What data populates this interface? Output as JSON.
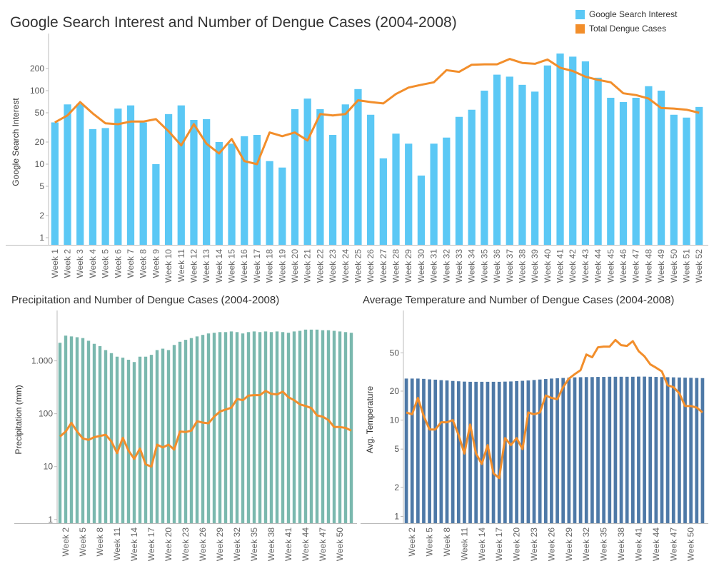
{
  "chart_data": [
    {
      "id": "top",
      "type": "bar",
      "title": "Google Search Interest and Number of Dengue Cases (2004-2008)",
      "ylabel": "Google Search Interest",
      "yscale": "log",
      "ylim": [
        0.8,
        500
      ],
      "yticks": [
        {
          "v": 1,
          "label": "1"
        },
        {
          "v": 2,
          "label": "2"
        },
        {
          "v": 5,
          "label": "5"
        },
        {
          "v": 10,
          "label": "10"
        },
        {
          "v": 20,
          "label": "20"
        },
        {
          "v": 50,
          "label": "50"
        },
        {
          "v": 100,
          "label": "100"
        },
        {
          "v": 200,
          "label": "200"
        }
      ],
      "categories": [
        "Week 1",
        "Week 2",
        "Week 3",
        "Week 4",
        "Week 5",
        "Week 6",
        "Week 7",
        "Week 8",
        "Week 9",
        "Week 10",
        "Week 11",
        "Week 12",
        "Week 13",
        "Week 14",
        "Week 15",
        "Week 16",
        "Week 17",
        "Week 18",
        "Week 19",
        "Week 20",
        "Week 21",
        "Week 22",
        "Week 23",
        "Week 24",
        "Week 25",
        "Week 26",
        "Week 27",
        "Week 28",
        "Week 29",
        "Week 30",
        "Week 31",
        "Week 32",
        "Week 33",
        "Week 34",
        "Week 35",
        "Week 36",
        "Week 37",
        "Week 38",
        "Week 39",
        "Week 40",
        "Week 41",
        "Week 42",
        "Week 43",
        "Week 44",
        "Week 45",
        "Week 46",
        "Week 47",
        "Week 48",
        "Week 49",
        "Week 50",
        "Week 51",
        "Week 52"
      ],
      "tick_labels": [
        "Week 1",
        "Week 2",
        "Week 3",
        "Week 4",
        "Week 5",
        "Week 6",
        "Week 7",
        "Week 8",
        "Week 9",
        "Week 10",
        "Week 11",
        "Week 12",
        "Week 13",
        "Week 14",
        "Week 15",
        "Week 16",
        "Week 17",
        "Week 18",
        "Week 19",
        "Week 20",
        "Week 21",
        "Week 22",
        "Week 23",
        "Week 24",
        "Week 25",
        "Week 26",
        "Week 27",
        "Week 28",
        "Week 29",
        "Week 30",
        "Week 31",
        "Week 32",
        "Week 33",
        "Week 34",
        "Week 35",
        "Week 36",
        "Week 37",
        "Week 38",
        "Week 39",
        "Week 40",
        "Week 41",
        "Week 42",
        "Week 43",
        "Week 44",
        "Week 45",
        "Week 46",
        "Week 47",
        "Week 48",
        "Week 49",
        "Week 50",
        "Week 51",
        "Week 52"
      ],
      "series": [
        {
          "name": "Google Search Interest",
          "kind": "bar",
          "color": "#5BC8F5",
          "values": [
            37,
            65,
            66,
            30,
            31,
            57,
            63,
            37,
            10,
            48,
            63,
            40,
            41,
            20,
            19,
            24,
            25,
            11,
            9,
            56,
            78,
            56,
            25,
            65,
            105,
            47,
            12,
            26,
            19,
            7,
            19,
            23,
            44,
            55,
            100,
            165,
            155,
            120,
            97,
            220,
            320,
            290,
            250,
            150,
            80,
            70,
            80,
            115,
            100,
            47,
            43,
            60
          ]
        },
        {
          "name": "Total Dengue Cases",
          "kind": "line",
          "color": "#F28E2B",
          "values": [
            37,
            46,
            70,
            49,
            36,
            35,
            38,
            38,
            41,
            28,
            18,
            35,
            19,
            14,
            22,
            11,
            10,
            27,
            24,
            27,
            21,
            48,
            46,
            48,
            74,
            70,
            67,
            90,
            110,
            120,
            130,
            190,
            180,
            225,
            228,
            228,
            270,
            238,
            232,
            265,
            205,
            185,
            155,
            140,
            130,
            92,
            87,
            78,
            58,
            57,
            55,
            50
          ]
        }
      ]
    },
    {
      "id": "precip",
      "type": "bar",
      "title": "Precipitation and Number of Dengue Cases (2004-2008)",
      "ylabel": "Precipitation (mm)",
      "yscale": "log",
      "ylim": [
        0.85,
        7000
      ],
      "yticks": [
        {
          "v": 1,
          "label": "1"
        },
        {
          "v": 10,
          "label": "10"
        },
        {
          "v": 100,
          "label": "100"
        },
        {
          "v": 1000,
          "label": "1.000"
        }
      ],
      "categories": [
        "Week 1",
        "Week 2",
        "Week 3",
        "Week 4",
        "Week 5",
        "Week 6",
        "Week 7",
        "Week 8",
        "Week 9",
        "Week 10",
        "Week 11",
        "Week 12",
        "Week 13",
        "Week 14",
        "Week 15",
        "Week 16",
        "Week 17",
        "Week 18",
        "Week 19",
        "Week 20",
        "Week 21",
        "Week 22",
        "Week 23",
        "Week 24",
        "Week 25",
        "Week 26",
        "Week 27",
        "Week 28",
        "Week 29",
        "Week 30",
        "Week 31",
        "Week 32",
        "Week 33",
        "Week 34",
        "Week 35",
        "Week 36",
        "Week 37",
        "Week 38",
        "Week 39",
        "Week 40",
        "Week 41",
        "Week 42",
        "Week 43",
        "Week 44",
        "Week 45",
        "Week 46",
        "Week 47",
        "Week 48",
        "Week 49",
        "Week 50",
        "Week 51",
        "Week 52"
      ],
      "tick_labels": [
        "",
        "Week 2",
        "",
        "",
        "Week 5",
        "",
        "",
        "Week 8",
        "",
        "",
        "Week 11",
        "",
        "",
        "Week 14",
        "",
        "",
        "Week 17",
        "",
        "",
        "Week 20",
        "",
        "",
        "Week 23",
        "",
        "",
        "Week 26",
        "",
        "",
        "Week 29",
        "",
        "",
        "Week 32",
        "",
        "",
        "Week 35",
        "",
        "",
        "Week 38",
        "",
        "",
        "Week 41",
        "",
        "",
        "Week 44",
        "",
        "",
        "Week 47",
        "",
        "",
        "Week 50",
        "",
        ""
      ],
      "series": [
        {
          "name": "Precipitation",
          "kind": "bar",
          "color": "#7AB8AE",
          "values": [
            2200,
            3000,
            2900,
            2800,
            2700,
            2400,
            2100,
            1900,
            1600,
            1400,
            1200,
            1150,
            1050,
            950,
            1200,
            1200,
            1300,
            1600,
            1700,
            1600,
            2000,
            2300,
            2500,
            2700,
            2900,
            3100,
            3300,
            3400,
            3500,
            3500,
            3600,
            3500,
            3300,
            3500,
            3600,
            3500,
            3600,
            3500,
            3600,
            3500,
            3400,
            3600,
            3700,
            3900,
            3900,
            3900,
            3800,
            3800,
            3700,
            3600,
            3500,
            3400
          ]
        },
        {
          "name": "Dengue Cases",
          "kind": "line",
          "color": "#F28E2B",
          "values": [
            37,
            46,
            67,
            46,
            34,
            32,
            36,
            38,
            40,
            30,
            18,
            35,
            20,
            14,
            22,
            11,
            10,
            26,
            23,
            26,
            21,
            46,
            45,
            48,
            72,
            68,
            66,
            88,
            110,
            120,
            130,
            190,
            180,
            220,
            225,
            225,
            270,
            238,
            232,
            262,
            205,
            180,
            150,
            140,
            128,
            93,
            88,
            76,
            56,
            56,
            54,
            48
          ]
        }
      ]
    },
    {
      "id": "temp",
      "type": "bar",
      "title": "Average Temperature and Number of Dengue Cases (2004-2008)",
      "ylabel": "Avg. Temperature",
      "yscale": "log",
      "ylim": [
        0.85,
        120
      ],
      "yticks": [
        {
          "v": 1,
          "label": "1"
        },
        {
          "v": 2,
          "label": "2"
        },
        {
          "v": 5,
          "label": "5"
        },
        {
          "v": 10,
          "label": "10"
        },
        {
          "v": 20,
          "label": "20"
        },
        {
          "v": 50,
          "label": "50"
        }
      ],
      "categories": [
        "Week 1",
        "Week 2",
        "Week 3",
        "Week 4",
        "Week 5",
        "Week 6",
        "Week 7",
        "Week 8",
        "Week 9",
        "Week 10",
        "Week 11",
        "Week 12",
        "Week 13",
        "Week 14",
        "Week 15",
        "Week 16",
        "Week 17",
        "Week 18",
        "Week 19",
        "Week 20",
        "Week 21",
        "Week 22",
        "Week 23",
        "Week 24",
        "Week 25",
        "Week 26",
        "Week 27",
        "Week 28",
        "Week 29",
        "Week 30",
        "Week 31",
        "Week 32",
        "Week 33",
        "Week 34",
        "Week 35",
        "Week 36",
        "Week 37",
        "Week 38",
        "Week 39",
        "Week 40",
        "Week 41",
        "Week 42",
        "Week 43",
        "Week 44",
        "Week 45",
        "Week 46",
        "Week 47",
        "Week 48",
        "Week 49",
        "Week 50",
        "Week 51",
        "Week 52"
      ],
      "tick_labels": [
        "",
        "Week 2",
        "",
        "",
        "Week 5",
        "",
        "",
        "Week 8",
        "",
        "",
        "Week 11",
        "",
        "",
        "Week 14",
        "",
        "",
        "Week 17",
        "",
        "",
        "Week 20",
        "",
        "",
        "Week 23",
        "",
        "",
        "Week 26",
        "",
        "",
        "Week 29",
        "",
        "",
        "Week 32",
        "",
        "",
        "Week 35",
        "",
        "",
        "Week 38",
        "",
        "",
        "Week 41",
        "",
        "",
        "Week 44",
        "",
        "",
        "Week 47",
        "",
        "",
        "Week 50",
        "",
        ""
      ],
      "series": [
        {
          "name": "Avg. Temperature",
          "kind": "bar",
          "color": "#4E79A7",
          "values": [
            27,
            27,
            27,
            26.8,
            26.5,
            26.3,
            26,
            25.8,
            25.5,
            25.3,
            25.1,
            25,
            25,
            25,
            25,
            25,
            25,
            25.1,
            25.2,
            25.4,
            25.6,
            25.8,
            26.1,
            26.4,
            26.7,
            27,
            27.2,
            27.4,
            27.6,
            27.8,
            27.9,
            28,
            28,
            28.1,
            28.1,
            28.2,
            28.2,
            28.2,
            28.2,
            28.2,
            28.3,
            28.3,
            28.2,
            28.1,
            28,
            27.9,
            27.8,
            27.7,
            27.6,
            27.5,
            27.4,
            27.3
          ]
        },
        {
          "name": "Dengue Cases",
          "kind": "line",
          "color": "#F28E2B",
          "values": [
            12,
            11.5,
            17,
            11,
            8,
            8,
            9.5,
            9.5,
            10,
            7,
            4.5,
            9,
            4.5,
            3.5,
            5.5,
            2.8,
            2.5,
            6.5,
            5.5,
            6.5,
            5,
            12,
            11.5,
            12,
            18,
            17,
            16.5,
            22,
            27,
            30,
            33,
            48,
            45,
            57,
            58,
            58,
            68,
            60,
            59,
            66,
            52,
            46,
            38,
            35,
            32,
            23,
            22,
            19,
            14,
            14,
            13.5,
            12
          ]
        }
      ]
    }
  ]
}
